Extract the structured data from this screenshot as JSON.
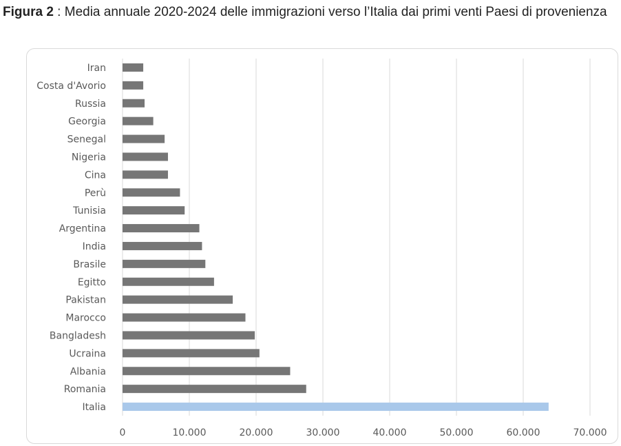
{
  "caption": {
    "figure_label": "Figura 2",
    "text": " : Media annuale 2020-2024 delle immigrazioni verso l’Italia dai primi venti Paesi di provenienza"
  },
  "chart_data": {
    "type": "bar",
    "orientation": "horizontal",
    "categories": [
      "Iran",
      "Costa d'Avorio",
      "Russia",
      "Georgia",
      "Senegal",
      "Nigeria",
      "Cina",
      "Perù",
      "Tunisia",
      "Argentina",
      "India",
      "Brasile",
      "Egitto",
      "Pakistan",
      "Marocco",
      "Bangladesh",
      "Ucraina",
      "Albania",
      "Romania",
      "Italia"
    ],
    "values": [
      3100,
      3100,
      3300,
      4600,
      6300,
      6800,
      6800,
      8600,
      9300,
      11500,
      11900,
      12400,
      13700,
      16500,
      18400,
      19800,
      20500,
      25100,
      27500,
      63800
    ],
    "xlim": [
      0,
      70000
    ],
    "x_ticks": [
      0,
      10000,
      20000,
      30000,
      40000,
      50000,
      60000,
      70000
    ],
    "x_tick_labels": [
      "0",
      "10.000",
      "20.000",
      "30.000",
      "40.000",
      "50.000",
      "60.000",
      "70.000"
    ],
    "grid": "vertical",
    "legend": "none",
    "colors": {
      "bar": "#767676",
      "highlight": "#a9c8ea",
      "highlight_category": "Italia",
      "grid": "#d9d9d9"
    }
  }
}
